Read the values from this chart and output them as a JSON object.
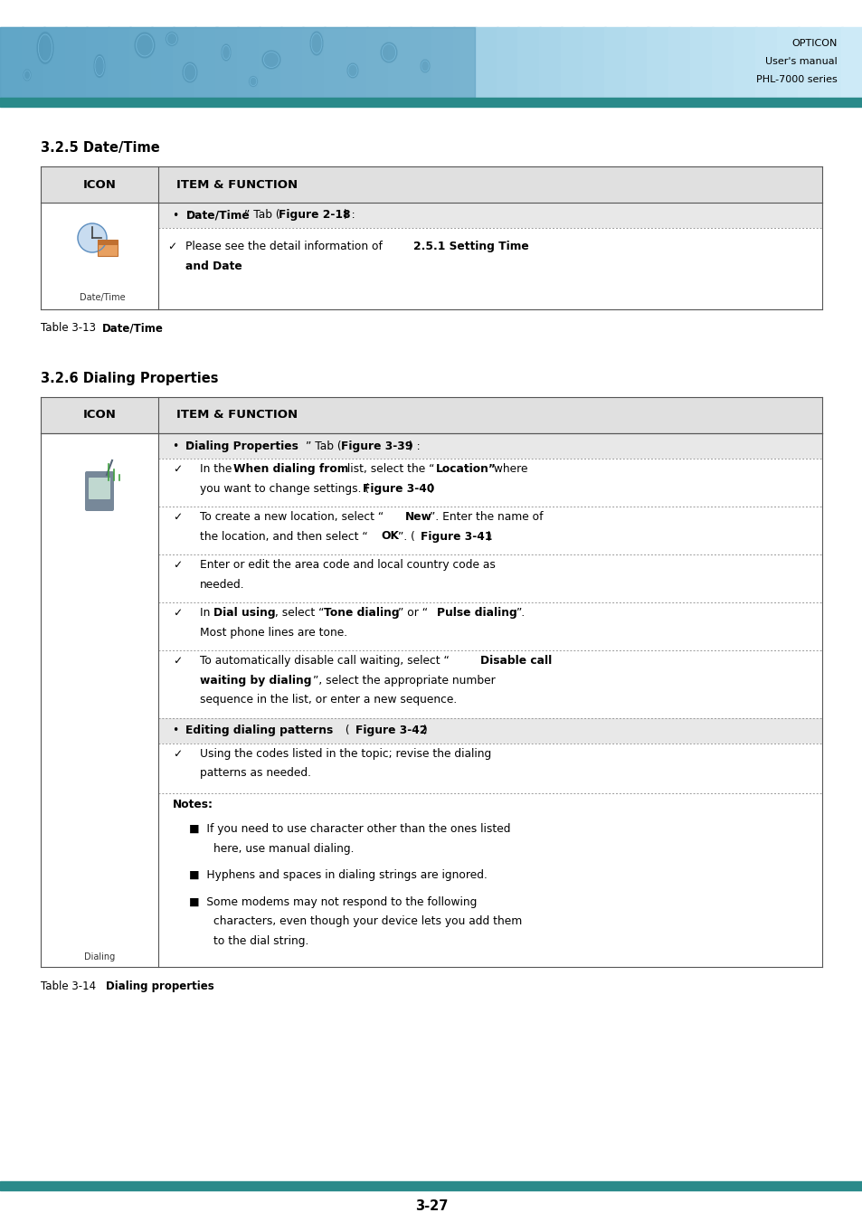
{
  "page_width": 9.54,
  "page_height": 13.51,
  "bg_color": "#ffffff",
  "header_bg_left": "#6ab0d0",
  "header_bg_right": "#c8e4f0",
  "header_bar_color": "#2a8a8a",
  "header_text": [
    "OPTICON",
    "User's manual",
    "PHL-7000 series"
  ],
  "footer_bar_color": "#2a8a8a",
  "footer_text": "3-27",
  "section1_title": "3.2.5 Date/Time",
  "table1_header_col1": "ICON",
  "table1_header_col2": "ITEM & FUNCTION",
  "section2_title": "3.2.6 Dialing Properties",
  "table2_header_col1": "ICON",
  "table2_header_col2": "ITEM & FUNCTION",
  "teal_color": "#2a8a8a",
  "header_gray": "#e0e0e0",
  "bullet_gray": "#e8e8e8",
  "table_border": "#555555",
  "dotted_line_color": "#999999"
}
